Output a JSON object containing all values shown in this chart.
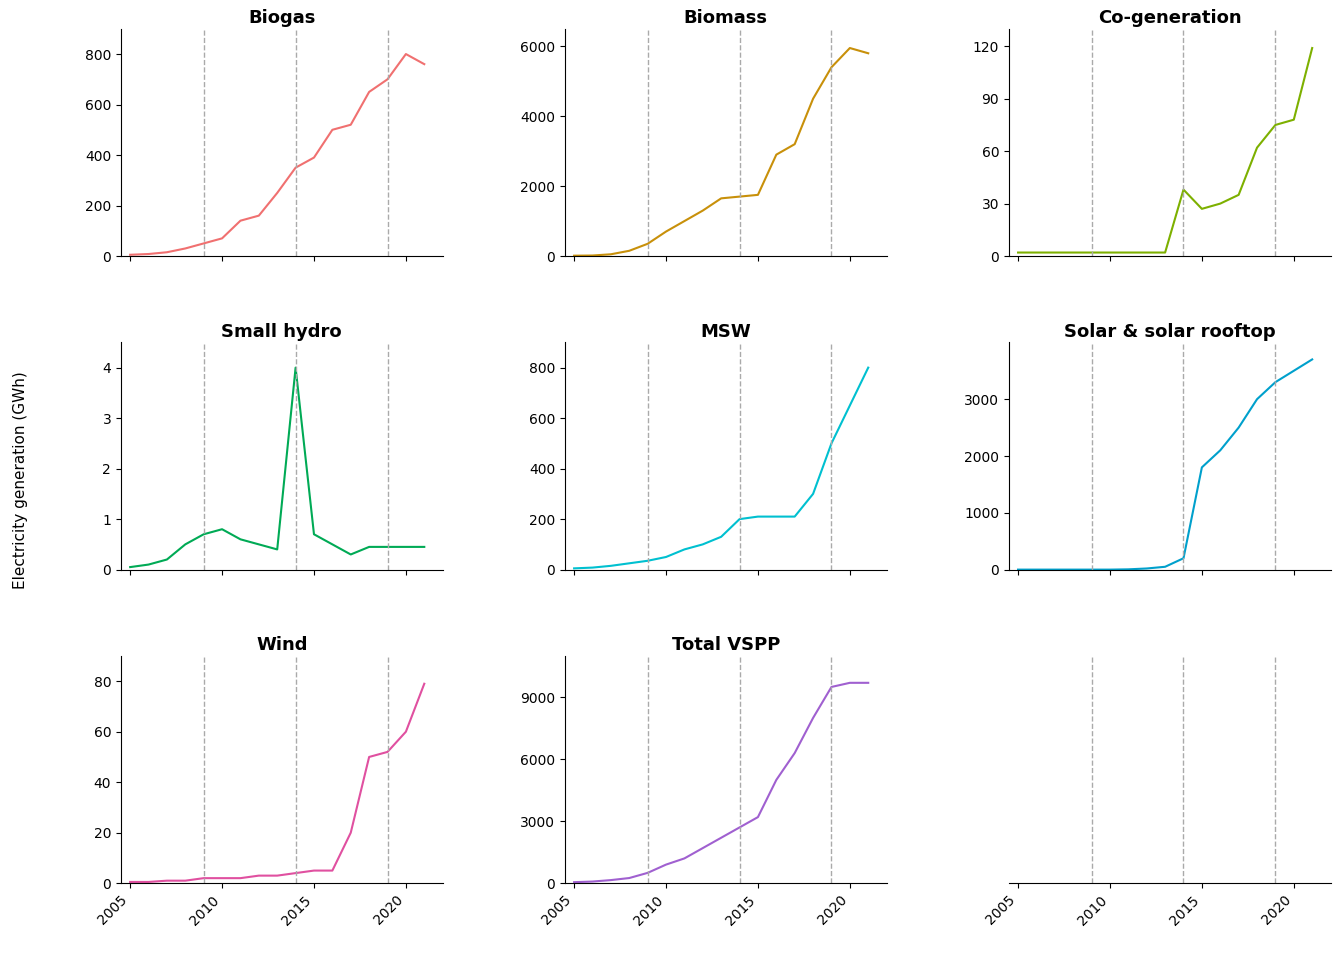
{
  "years": [
    2005,
    2006,
    2007,
    2008,
    2009,
    2010,
    2011,
    2012,
    2013,
    2014,
    2015,
    2016,
    2017,
    2018,
    2019,
    2020,
    2021
  ],
  "biogas": [
    5,
    8,
    15,
    30,
    50,
    70,
    140,
    160,
    250,
    350,
    390,
    500,
    520,
    650,
    700,
    800,
    760
  ],
  "biomass": [
    10,
    15,
    50,
    150,
    350,
    700,
    1000,
    1300,
    1650,
    1700,
    1750,
    2900,
    3200,
    4500,
    5400,
    5950,
    5800
  ],
  "cogeneration": [
    2,
    2,
    2,
    2,
    2,
    2,
    2,
    2,
    2,
    38,
    27,
    30,
    35,
    62,
    75,
    78,
    119
  ],
  "small_hydro": [
    0.05,
    0.1,
    0.2,
    0.5,
    0.7,
    0.8,
    0.6,
    0.5,
    0.4,
    4.0,
    0.7,
    0.5,
    0.3,
    0.45,
    0.45,
    0.45,
    0.45
  ],
  "msw": [
    5,
    8,
    15,
    25,
    35,
    50,
    80,
    100,
    130,
    200,
    210,
    210,
    210,
    300,
    500,
    650,
    800
  ],
  "solar": [
    0,
    0,
    0,
    0,
    0,
    0,
    5,
    20,
    50,
    200,
    1800,
    2100,
    2500,
    3000,
    3300,
    3500,
    3700
  ],
  "wind": [
    0.5,
    0.5,
    1,
    1,
    2,
    2,
    2,
    3,
    3,
    4,
    5,
    5,
    20,
    50,
    52,
    60,
    79
  ],
  "total_vspp": [
    50,
    80,
    150,
    250,
    500,
    900,
    1200,
    1700,
    2200,
    2700,
    3200,
    5000,
    6300,
    8000,
    9500,
    9700,
    9700
  ],
  "colors": {
    "biogas": "#f07070",
    "biomass": "#c8900a",
    "cogeneration": "#7db000",
    "small_hydro": "#00aa55",
    "msw": "#00c0d0",
    "solar": "#00a0cc",
    "wind": "#e050a0",
    "total_vspp": "#a060d0"
  },
  "titles": {
    "biogas": "Biogas",
    "biomass": "Biomass",
    "cogeneration": "Co-generation",
    "small_hydro": "Small hydro",
    "msw": "MSW",
    "solar": "Solar & solar rooftop",
    "wind": "Wind",
    "total_vspp": "Total VSPP"
  },
  "ylims": {
    "biogas": [
      0,
      900
    ],
    "biomass": [
      0,
      6500
    ],
    "cogeneration": [
      0,
      130
    ],
    "small_hydro": [
      0,
      4.5
    ],
    "msw": [
      0,
      900
    ],
    "solar": [
      0,
      4000
    ],
    "wind": [
      0,
      90
    ],
    "total_vspp": [
      0,
      11000
    ]
  },
  "yticks": {
    "biogas": [
      0,
      200,
      400,
      600,
      800
    ],
    "biomass": [
      0,
      2000,
      4000,
      6000
    ],
    "cogeneration": [
      0,
      30,
      60,
      90,
      120
    ],
    "small_hydro": [
      0,
      1,
      2,
      3,
      4
    ],
    "msw": [
      0,
      200,
      400,
      600,
      800
    ],
    "solar": [
      0,
      1000,
      2000,
      3000
    ],
    "wind": [
      0,
      20,
      40,
      60,
      80
    ],
    "total_vspp": [
      0,
      3000,
      6000,
      9000
    ]
  },
  "vlines": [
    2009,
    2014,
    2019
  ],
  "xticks": [
    2005,
    2010,
    2015,
    2020
  ],
  "xlim": [
    2004.5,
    2022
  ],
  "ylabel": "Electricity generation (GWh)",
  "background_color": "#ffffff",
  "title_fontsize": 13,
  "label_fontsize": 11,
  "tick_fontsize": 10
}
